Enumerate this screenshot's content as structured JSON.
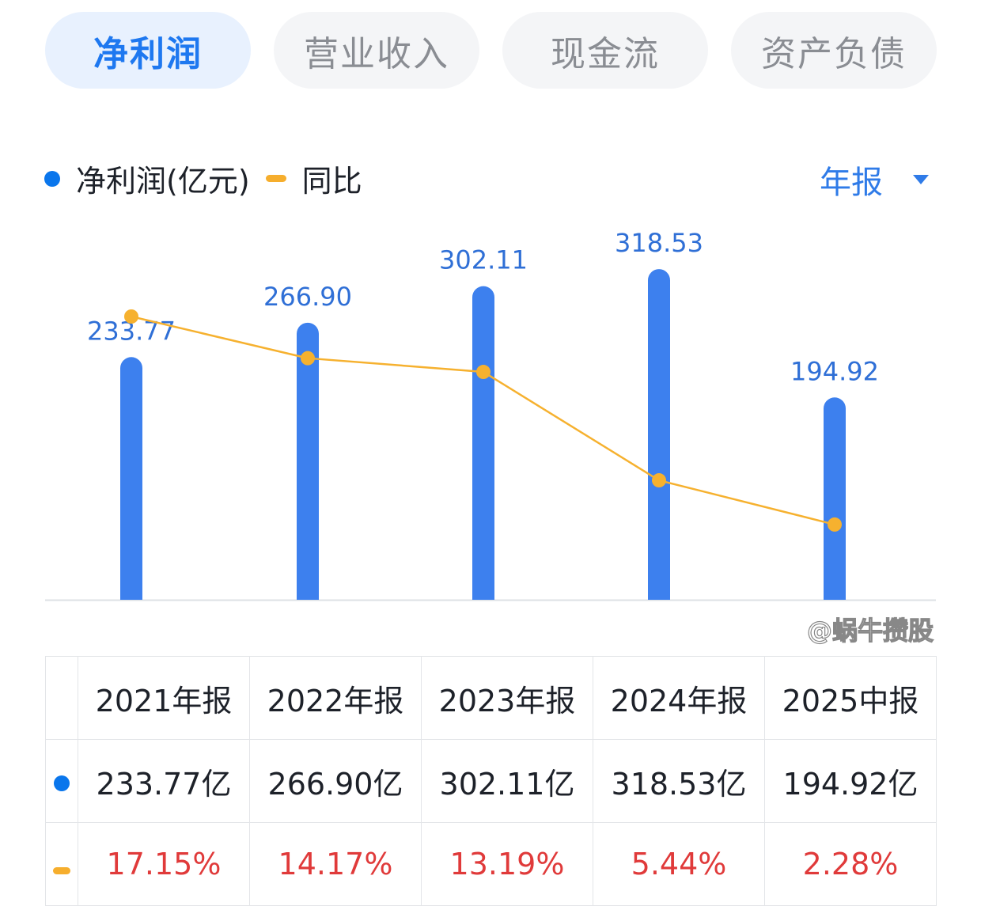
{
  "tabs": [
    {
      "label": "净利润",
      "active": true
    },
    {
      "label": "营业收入"
    },
    {
      "label": "现金流"
    },
    {
      "label": "资产负债"
    }
  ],
  "legend": {
    "series1": "净利润(亿元)",
    "series2": "同比"
  },
  "period_selector": "年报",
  "colors": {
    "bar": "#3d80ee",
    "line": "#f6b12f",
    "accent": "#1e78f0",
    "negative_label": "#e03a3a"
  },
  "chart_data": {
    "type": "bar+line",
    "categories": [
      "2021年报",
      "2022年报",
      "2023年报",
      "2024年报",
      "2025中报"
    ],
    "series": [
      {
        "name": "净利润(亿元)",
        "type": "bar",
        "values": [
          233.77,
          266.9,
          302.11,
          318.53,
          194.92
        ],
        "labels": [
          "233.77",
          "266.90",
          "302.11",
          "318.53",
          "194.92"
        ]
      },
      {
        "name": "同比",
        "type": "line",
        "values": [
          17.15,
          14.17,
          13.19,
          5.44,
          2.28
        ]
      }
    ],
    "grid": false,
    "legend_position": "top-left"
  },
  "table": {
    "headers": [
      "2021年报",
      "2022年报",
      "2023年报",
      "2024年报",
      "2025中报"
    ],
    "profit": [
      "233.77亿",
      "266.90亿",
      "302.11亿",
      "318.53亿",
      "194.92亿"
    ],
    "yoy": [
      "17.15%",
      "14.17%",
      "13.19%",
      "5.44%",
      "2.28%"
    ]
  },
  "watermark": "@蜗牛攒股"
}
